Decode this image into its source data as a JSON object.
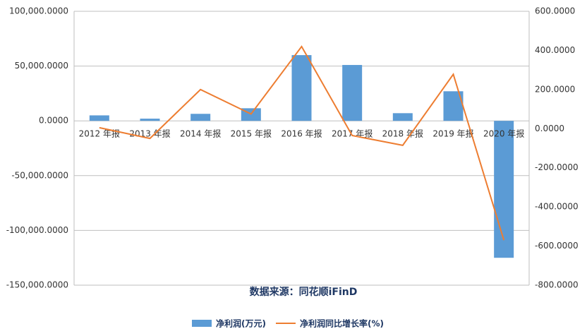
{
  "chart_data": {
    "type": "bar-line",
    "annotation": "数据来源：同花顺iFinD",
    "categories": [
      "2012 年报",
      "2013 年报",
      "2014 年报",
      "2015 年报",
      "2016 年报",
      "2017 年报",
      "2018 年报",
      "2019 年报",
      "2020 年报"
    ],
    "series": [
      {
        "name": "净利润(万元)",
        "color": "#5b9bd5",
        "type": "bar",
        "values": [
          5000,
          2000,
          6400,
          11500,
          60000,
          51000,
          7000,
          27000,
          -125000
        ]
      },
      {
        "name": "净利润同比增长率(%)",
        "color": "#ed7d31",
        "type": "line",
        "axis": "y2",
        "values": [
          5,
          -50,
          200,
          75,
          420,
          -35,
          -85,
          278,
          -570
        ]
      }
    ],
    "ylim": [
      -150000,
      100000
    ],
    "yticks": [
      {
        "value": -150000,
        "label": "-150,000.0000"
      },
      {
        "value": -100000,
        "label": "-100,000.0000"
      },
      {
        "value": -50000,
        "label": "-50,000.0000"
      },
      {
        "value": 0,
        "label": "0.0000"
      },
      {
        "value": 50000,
        "label": "50,000.0000"
      },
      {
        "value": 100000,
        "label": "100,000.0000"
      }
    ],
    "y2lim": [
      -800,
      600
    ],
    "y2ticks": [
      {
        "value": -800,
        "label": "-800.0000"
      },
      {
        "value": -600,
        "label": "-600.0000"
      },
      {
        "value": -400,
        "label": "-400.0000"
      },
      {
        "value": -200,
        "label": "-200.0000"
      },
      {
        "value": 0,
        "label": "0.0000"
      },
      {
        "value": 200,
        "label": "200.0000"
      },
      {
        "value": 400,
        "label": "400.0000"
      },
      {
        "value": 600,
        "label": "600.0000"
      }
    ],
    "grid": true
  }
}
